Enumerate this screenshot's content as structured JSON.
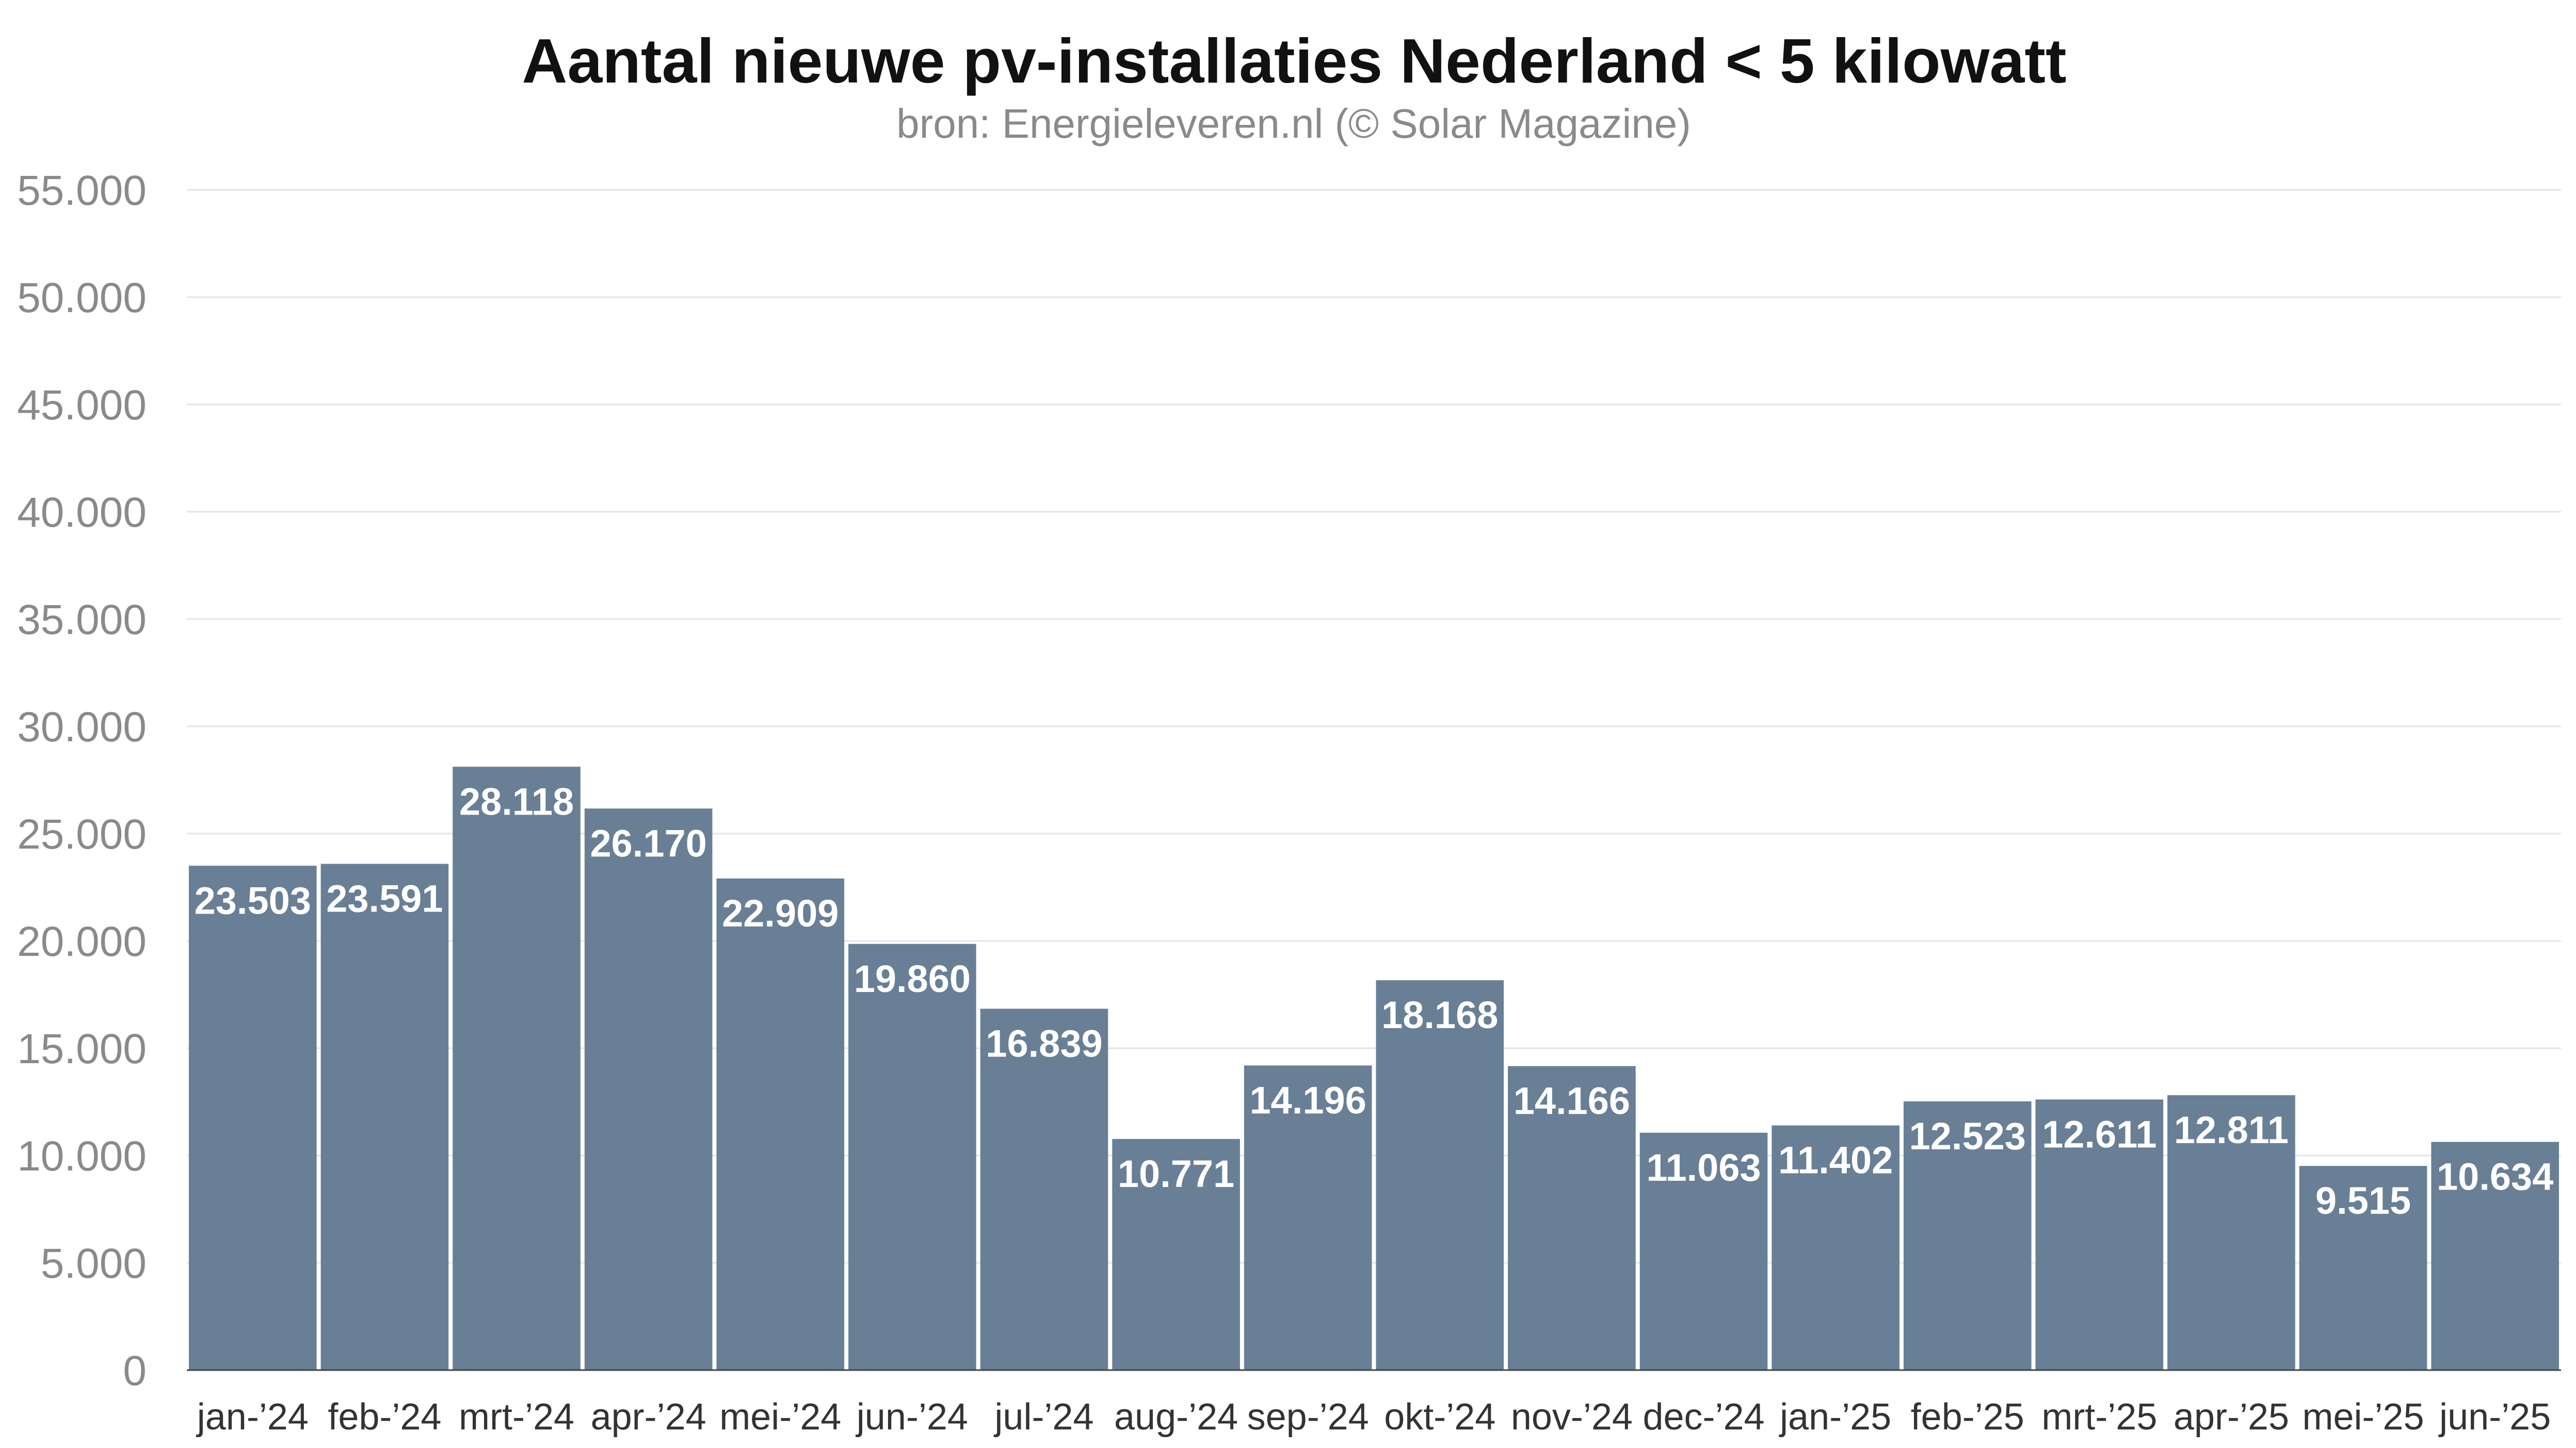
{
  "colors": {
    "bar": "#687f96",
    "value_label": "#ffffff",
    "grid": "#e4e4e4",
    "baseline": "#444444",
    "axis_text": "#8a8a8a",
    "category_text": "#333333",
    "title": "#111111",
    "subtitle": "#8a8a8a"
  },
  "chart_data": {
    "type": "bar",
    "title": "Aantal nieuwe pv-installaties Nederland < 5 kilowatt",
    "subtitle": "bron: Energieleveren.nl (© Solar Magazine)",
    "ylim": [
      0,
      55000
    ],
    "grid": true,
    "categories": [
      "jan-’24",
      "feb-’24",
      "mrt-’24",
      "apr-’24",
      "mei-’24",
      "jun-’24",
      "jul-’24",
      "aug-’24",
      "sep-’24",
      "okt-’24",
      "nov-’24",
      "dec-’24",
      "jan-’25",
      "feb-’25",
      "mrt-’25",
      "apr-’25",
      "mei-’25",
      "jun-’25"
    ],
    "values": [
      23503,
      23591,
      28118,
      26170,
      22909,
      19860,
      16839,
      10771,
      14196,
      18168,
      14166,
      11063,
      11402,
      12523,
      12611,
      12811,
      9515,
      10634
    ],
    "value_labels": [
      "23.503",
      "23.591",
      "28.118",
      "26.170",
      "22.909",
      "19.860",
      "16.839",
      "10.771",
      "14.196",
      "18.168",
      "14.166",
      "11.063",
      "11.402",
      "12.523",
      "12.611",
      "12.811",
      "9.515",
      "10.634"
    ],
    "yticks": [
      0,
      5000,
      10000,
      15000,
      20000,
      25000,
      30000,
      35000,
      40000,
      45000,
      50000,
      55000
    ],
    "ytick_labels": [
      "0",
      "5.000",
      "10.000",
      "15.000",
      "20.000",
      "25.000",
      "30.000",
      "35.000",
      "40.000",
      "45.000",
      "50.000",
      "55.000"
    ]
  }
}
